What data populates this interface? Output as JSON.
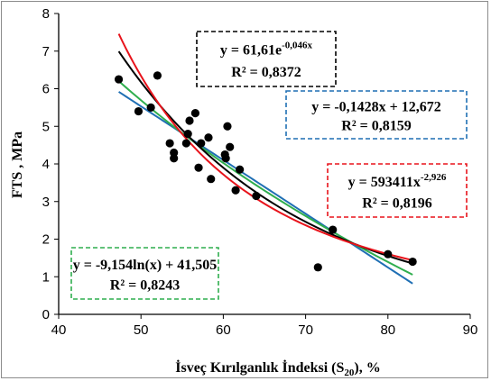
{
  "chart_data": {
    "type": "scatter",
    "title": "",
    "xlabel": "İsveç Kırılganlık İndeksi (S",
    "xlabel_sub": "20",
    "xlabel_suffix": "), %",
    "ylabel": "FTS , MPa",
    "xlim": [
      40,
      90
    ],
    "ylim": [
      0,
      8
    ],
    "xticks": [
      40,
      50,
      60,
      70,
      80,
      90
    ],
    "yticks": [
      0,
      1,
      2,
      3,
      4,
      5,
      6,
      7,
      8
    ],
    "grid": false,
    "points": [
      [
        47.3,
        6.25
      ],
      [
        49.7,
        5.4
      ],
      [
        51.2,
        5.5
      ],
      [
        52.0,
        6.35
      ],
      [
        53.5,
        4.55
      ],
      [
        54.0,
        4.3
      ],
      [
        54.0,
        4.15
      ],
      [
        55.5,
        4.55
      ],
      [
        55.7,
        4.8
      ],
      [
        55.9,
        5.15
      ],
      [
        56.6,
        5.35
      ],
      [
        57.0,
        3.9
      ],
      [
        57.3,
        4.55
      ],
      [
        58.2,
        4.7
      ],
      [
        58.5,
        3.6
      ],
      [
        60.2,
        4.25
      ],
      [
        60.3,
        4.15
      ],
      [
        60.5,
        5.0
      ],
      [
        60.8,
        4.45
      ],
      [
        61.5,
        3.3
      ],
      [
        62.0,
        3.85
      ],
      [
        64.0,
        3.15
      ],
      [
        71.5,
        1.25
      ],
      [
        73.3,
        2.25
      ],
      [
        80.0,
        1.6
      ],
      [
        83.0,
        1.4
      ]
    ],
    "series": [
      {
        "kind": "exponential",
        "color": "#000000",
        "a": 61.61,
        "b": -0.046,
        "equation": {
          "text": "y = 61,61e",
          "sup": "-0,046x",
          "r2": "R² = 0,8372",
          "border": "#000000"
        }
      },
      {
        "kind": "linear",
        "color": "#1f6fb4",
        "m": -0.1428,
        "c": 12.672,
        "equation": {
          "text": "y = -0,1428x + 12,672",
          "sup": "",
          "r2": "R² = 0,8159",
          "border": "#1f6fb4"
        }
      },
      {
        "kind": "power",
        "color": "#e8131b",
        "a": 593411,
        "b": -2.926,
        "equation": {
          "text": "y = 593411x",
          "sup": "-2,926",
          "r2": "R² = 0,8196",
          "border": "#e8131b"
        }
      },
      {
        "kind": "logarithmic",
        "color": "#2fae4e",
        "a": -9.154,
        "c": 41.505,
        "equation": {
          "text": "y = -9,154ln(x) + 41,505",
          "sup": "",
          "r2": "R² = 0,8243",
          "border": "#2fae4e"
        }
      }
    ],
    "fit_range": [
      47.3,
      83.0
    ]
  }
}
